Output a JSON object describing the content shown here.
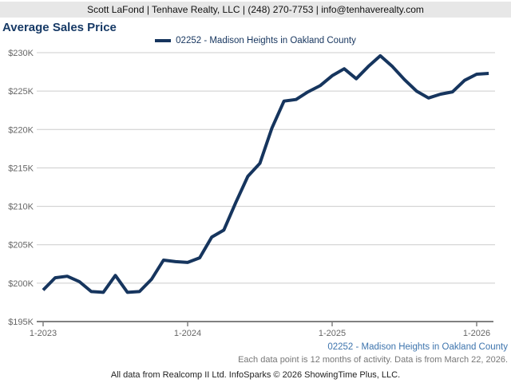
{
  "header": {
    "contact_line": "Scott LaFond | Tenhave Realty, LLC | (248) 270-7753 | info@tenhaverealty.com"
  },
  "title": "Average Sales Price",
  "legend": {
    "label": "02252 - Madison Heights in Oakland County"
  },
  "footer": {
    "series_label": "02252 - Madison Heights in Oakland County",
    "data_note": "Each data point is 12 months of activity. Data is from March 22, 2026.",
    "copyright": "All data from Realcomp II Ltd. InfoSparks © 2026 ShowingTime Plus, LLC."
  },
  "colors": {
    "line": "#16355e",
    "title": "#173a66",
    "footer_link": "#3d74ad",
    "muted_text": "#777777",
    "grid": "#cccccc",
    "axis": "#808080",
    "tick_label": "#666666",
    "header_bg": "#e7e7e7"
  },
  "chart_data": {
    "type": "line",
    "title": "Average Sales Price",
    "grid": "horizontal",
    "legend_position": "top-center",
    "ylim": [
      195000,
      230000
    ],
    "x": [
      "1-2023",
      "2-2023",
      "3-2023",
      "4-2023",
      "5-2023",
      "6-2023",
      "7-2023",
      "8-2023",
      "9-2023",
      "10-2023",
      "11-2023",
      "12-2023",
      "1-2024",
      "2-2024",
      "3-2024",
      "4-2024",
      "5-2024",
      "6-2024",
      "7-2024",
      "8-2024",
      "9-2024",
      "10-2024",
      "11-2024",
      "12-2024",
      "1-2025",
      "2-2025",
      "3-2025",
      "4-2025",
      "5-2025",
      "6-2025",
      "7-2025",
      "8-2025",
      "9-2025",
      "10-2025",
      "11-2025",
      "12-2025",
      "1-2026",
      "2-2026"
    ],
    "series": [
      {
        "name": "02252 - Madison Heights in Oakland County",
        "color": "#16355e",
        "values": [
          199100,
          200700,
          200900,
          200200,
          198900,
          198800,
          201000,
          198800,
          198900,
          200500,
          203000,
          202800,
          202700,
          203300,
          206000,
          206900,
          210500,
          213900,
          215600,
          220200,
          223700,
          223900,
          224900,
          225700,
          227000,
          227900,
          226600,
          228200,
          229600,
          228200,
          226500,
          225000,
          224100,
          224600,
          224900,
          226400,
          227200,
          227300
        ]
      }
    ],
    "y_ticks": [
      {
        "value": 195000,
        "label": "$195K"
      },
      {
        "value": 200000,
        "label": "$200K"
      },
      {
        "value": 205000,
        "label": "$205K"
      },
      {
        "value": 210000,
        "label": "$210K"
      },
      {
        "value": 215000,
        "label": "$215K"
      },
      {
        "value": 220000,
        "label": "$220K"
      },
      {
        "value": 225000,
        "label": "$225K"
      },
      {
        "value": 230000,
        "label": "$230K"
      }
    ],
    "x_ticks": [
      {
        "index": 0,
        "label": "1-2023"
      },
      {
        "index": 12,
        "label": "1-2024"
      },
      {
        "index": 24,
        "label": "1-2025"
      },
      {
        "index": 36,
        "label": "1-2026"
      }
    ]
  }
}
